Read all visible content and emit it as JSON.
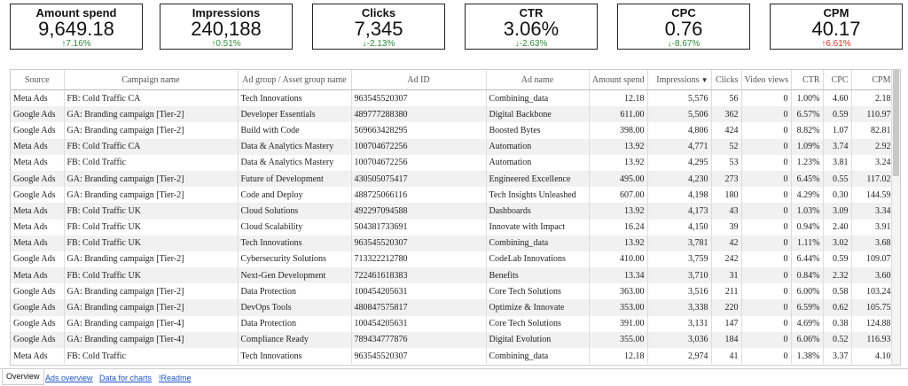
{
  "kpis": [
    {
      "title": "Amount spend",
      "value": "9,649.18",
      "delta": "7.16%",
      "dir": "up"
    },
    {
      "title": "Impressions",
      "value": "240,188",
      "delta": "0.51%",
      "dir": "up"
    },
    {
      "title": "Clicks",
      "value": "7,345",
      "delta": "-2.13%",
      "dir": "down"
    },
    {
      "title": "CTR",
      "value": "3.06%",
      "delta": "-2.63%",
      "dir": "down"
    },
    {
      "title": "CPC",
      "value": "0.76",
      "delta": "-8.67%",
      "dir": "down"
    },
    {
      "title": "CPM",
      "value": "40.17",
      "delta": "6.61%",
      "dir": "up"
    }
  ],
  "colors": {
    "positive": "#2e8b3a",
    "negative": "#d93025",
    "link": "#1a55c9"
  },
  "table": {
    "headers": [
      "Source",
      "Campaign name",
      "Ad group / Asset group name",
      "Ad ID",
      "Ad name",
      "Amount spend",
      "Impressions",
      "Clicks",
      "Video views",
      "CTR",
      "CPC",
      "CPM"
    ],
    "sort_indicator": "▼",
    "rows": [
      [
        "Meta Ads",
        "FB: Cold Traffic CA",
        "Tech Innovations",
        "963545520307",
        "Combining_data",
        "12.18",
        "5,576",
        "56",
        "0",
        "1.00%",
        "4.60",
        "2.18"
      ],
      [
        "Google Ads",
        "GA: Branding campaign [Tier-2]",
        "Developer Essentials",
        "489777288380",
        "Digital Backbone",
        "611.00",
        "5,506",
        "362",
        "0",
        "6.57%",
        "0.59",
        "110.97"
      ],
      [
        "Google Ads",
        "GA: Branding campaign [Tier-2]",
        "Build with Code",
        "569663428295",
        "Boosted Bytes",
        "398.00",
        "4,806",
        "424",
        "0",
        "8.82%",
        "1.07",
        "82.81"
      ],
      [
        "Meta Ads",
        "FB: Cold Traffic CA",
        "Data & Analytics Mastery",
        "100704672256",
        "Automation",
        "13.92",
        "4,771",
        "52",
        "0",
        "1.09%",
        "3.74",
        "2.92"
      ],
      [
        "Meta Ads",
        "FB: Cold Traffic",
        "Data & Analytics Mastery",
        "100704672256",
        "Automation",
        "13.92",
        "4,295",
        "53",
        "0",
        "1.23%",
        "3.81",
        "3.24"
      ],
      [
        "Google Ads",
        "GA: Branding campaign [Tier-2]",
        "Future of Development",
        "430505075417",
        "Engineered Excellence",
        "495.00",
        "4,230",
        "273",
        "0",
        "6.45%",
        "0.55",
        "117.02"
      ],
      [
        "Google Ads",
        "GA: Branding campaign [Tier-2]",
        "Code and Deploy",
        "488725066116",
        "Tech Insights Unleashed",
        "607.00",
        "4,198",
        "180",
        "0",
        "4.29%",
        "0.30",
        "144.59"
      ],
      [
        "Meta Ads",
        "FB: Cold Traffic UK",
        "Cloud Solutions",
        "492297094588",
        "Dashboards",
        "13.92",
        "4,173",
        "43",
        "0",
        "1.03%",
        "3.09",
        "3.34"
      ],
      [
        "Meta Ads",
        "FB: Cold Traffic UK",
        "Cloud Scalability",
        "504381733691",
        "Innovate with Impact",
        "16.24",
        "4,150",
        "39",
        "0",
        "0.94%",
        "2.40",
        "3.91"
      ],
      [
        "Meta Ads",
        "FB: Cold Traffic UK",
        "Tech Innovations",
        "963545520307",
        "Combining_data",
        "13.92",
        "3,781",
        "42",
        "0",
        "1.11%",
        "3.02",
        "3.68"
      ],
      [
        "Google Ads",
        "GA: Branding campaign [Tier-2]",
        "Cybersecurity Solutions",
        "713322212780",
        "CodeLab Innovations",
        "410.00",
        "3,759",
        "242",
        "0",
        "6.44%",
        "0.59",
        "109.07"
      ],
      [
        "Meta Ads",
        "FB: Cold Traffic UK",
        "Next-Gen Development",
        "722461618383",
        "Benefits",
        "13.34",
        "3,710",
        "31",
        "0",
        "0.84%",
        "2.32",
        "3.60"
      ],
      [
        "Google Ads",
        "GA: Branding campaign [Tier-2]",
        "Data Protection",
        "100454205631",
        "Core Tech Solutions",
        "363.00",
        "3,516",
        "211",
        "0",
        "6.00%",
        "0.58",
        "103.24"
      ],
      [
        "Google Ads",
        "GA: Branding campaign [Tier-2]",
        "DevOps Tools",
        "480847575817",
        "Optimize & Innovate",
        "353.00",
        "3,338",
        "220",
        "0",
        "6.59%",
        "0.62",
        "105.75"
      ],
      [
        "Google Ads",
        "GA: Branding campaign [Tier-4]",
        "Data Protection",
        "100454205631",
        "Core Tech Solutions",
        "391.00",
        "3,131",
        "147",
        "0",
        "4.69%",
        "0.38",
        "124.88"
      ],
      [
        "Google Ads",
        "GA: Branding campaign [Tier-4]",
        "Compliance Ready",
        "789434777876",
        "Digital Evolution",
        "355.00",
        "3,036",
        "184",
        "0",
        "6.06%",
        "0.52",
        "116.93"
      ],
      [
        "Meta Ads",
        "FB: Cold Traffic",
        "Tech Innovations",
        "963545520307",
        "Combining_data",
        "12.18",
        "2,974",
        "41",
        "0",
        "1.38%",
        "3.37",
        "4.10"
      ]
    ]
  },
  "tabs": [
    "Overview",
    "Ads overview",
    "Data for charts",
    "!Readme"
  ]
}
